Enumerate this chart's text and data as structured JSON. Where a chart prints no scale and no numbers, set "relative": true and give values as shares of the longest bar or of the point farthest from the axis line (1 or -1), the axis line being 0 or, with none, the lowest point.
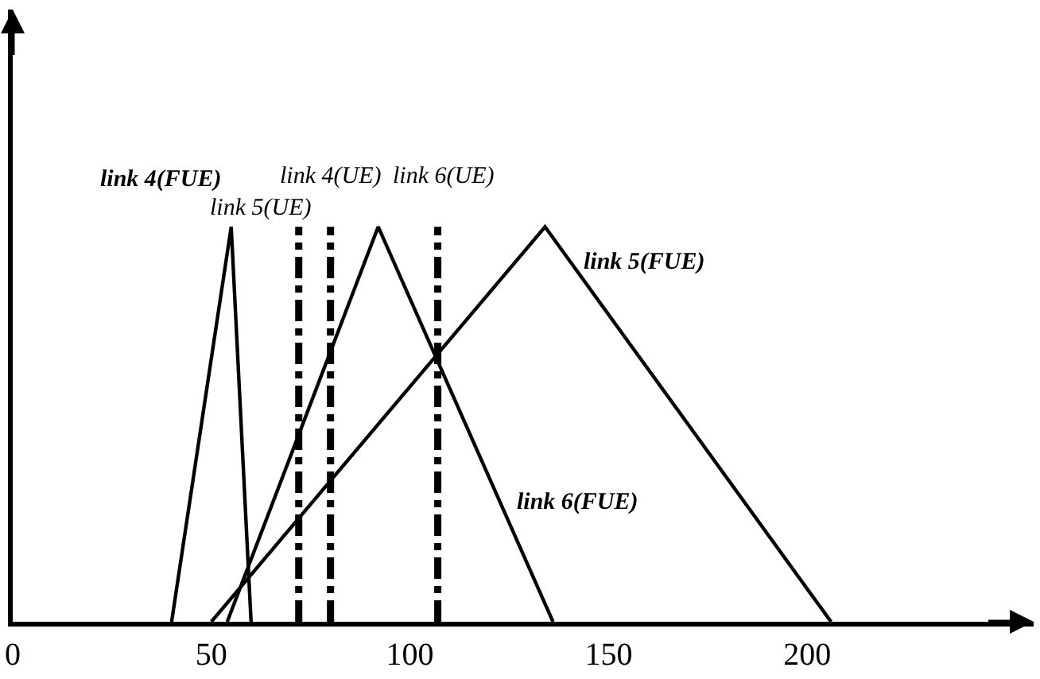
{
  "chart_data": {
    "type": "line",
    "relative": true,
    "xlim": [
      0,
      257
    ],
    "xticks": [
      0,
      50,
      100,
      150,
      200
    ],
    "tick_labels": "x",
    "legend": false,
    "marker": "none",
    "line_style": "solid",
    "series": [
      {
        "name": "link 4(FUE)",
        "color": "#000000",
        "x": [
          40,
          55,
          60
        ],
        "values": [
          0,
          1,
          0
        ]
      },
      {
        "name": "link 6(FUE)",
        "color": "#000000",
        "x": [
          54,
          92,
          136
        ],
        "values": [
          0,
          1,
          0
        ]
      },
      {
        "name": "link 5(FUE)",
        "color": "#000000",
        "x": [
          50,
          134,
          206
        ],
        "values": [
          0,
          1,
          0
        ]
      }
    ],
    "ref_lines": [
      {
        "axis": "x",
        "value": 72,
        "label": "link 5(UE)",
        "color": "#000000",
        "line_style": "dashed"
      },
      {
        "axis": "x",
        "value": 80,
        "label": "link 4(UE)",
        "color": "#000000",
        "line_style": "dashed"
      },
      {
        "axis": "x",
        "value": 107,
        "label": "link 6(UE)",
        "color": "#000000",
        "line_style": "dashed"
      }
    ]
  }
}
